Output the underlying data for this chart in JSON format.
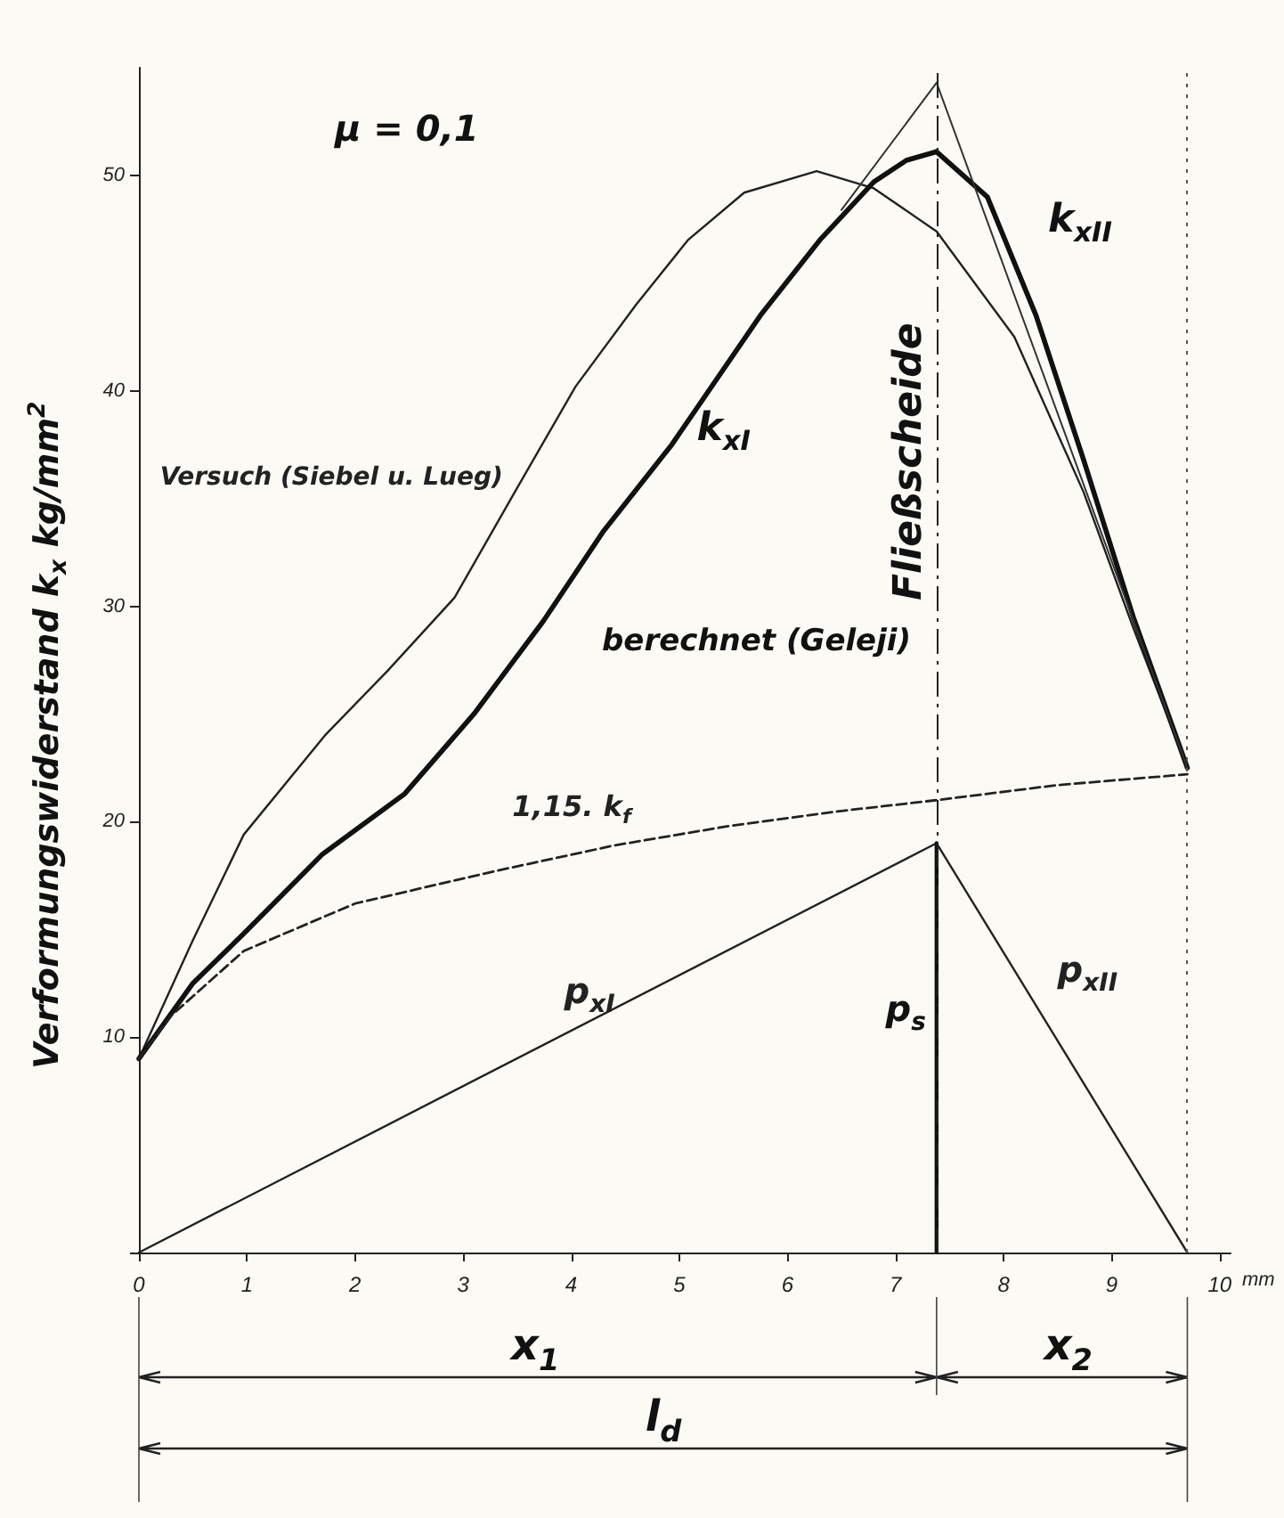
{
  "chart_data": {
    "type": "line",
    "xlabel": "mm",
    "ylabel": "Verformungswiderstand  k$_{x}$  kg/mm$^{2}$",
    "xlim": [
      0,
      10.1
    ],
    "xticks": [
      0,
      1,
      2,
      3,
      4,
      5,
      6,
      7,
      8,
      9,
      10
    ],
    "ylim": [
      0,
      55
    ],
    "yticks": [
      {
        "value": 0,
        "label": null
      },
      10,
      20,
      30,
      40,
      50
    ],
    "grid": false,
    "legend": false,
    "marker": "none",
    "annotations": [
      "μ = 0,1",
      "berechnet (Geleji)",
      "x$_{1}$",
      "x$_{2}$",
      "l$_{d}$"
    ],
    "ref_lines": [
      {
        "axis": "x",
        "value": 7.38,
        "label": "Fließscheide",
        "line_style": "dashed",
        "color": "#222222"
      },
      {
        "axis": "x",
        "value": 9.7,
        "label": null,
        "line_style": "dotted",
        "color": "#555555"
      }
    ],
    "series": [
      {
        "name": "Versuch (Siebel u. Lueg)",
        "color": "#222222",
        "line_style": "solid",
        "x": [
          0,
          0.5,
          0.97,
          1.72,
          2.3,
          2.92,
          3.5,
          4.04,
          4.6,
          5.08,
          5.6,
          6.27,
          6.8,
          7.38,
          8.1,
          8.74,
          9.2,
          9.7
        ],
        "values": [
          9,
          14.5,
          19.4,
          24,
          27,
          30.4,
          35.5,
          40.2,
          44,
          47,
          49.2,
          50.2,
          49.4,
          47.4,
          42.5,
          35.3,
          29,
          22.5
        ]
      },
      {
        "name": "k$_{xI}$",
        "color": "#111111",
        "line_style": "solid",
        "x": [
          0,
          0.5,
          0.97,
          1.7,
          2.46,
          3.1,
          3.74,
          4.3,
          4.93,
          5.75,
          6.3,
          6.8,
          7.1,
          7.38
        ],
        "values": [
          9,
          12.5,
          14.8,
          18.5,
          21.3,
          25,
          29.3,
          33.5,
          37.5,
          43.5,
          47,
          49.7,
          50.7,
          51.1
        ]
      },
      {
        "name": "k$_{xII}$",
        "color": "#111111",
        "line_style": "solid",
        "x": [
          7.38,
          7.85,
          8.3,
          8.74,
          9.2,
          9.7
        ],
        "values": [
          51.1,
          49,
          43.5,
          36.8,
          29.5,
          22.5
        ]
      },
      {
        "name": "1,15. k$_{f}$",
        "color": "#222222",
        "line_style": "dashed",
        "x": [
          0,
          0.3,
          0.97,
          2,
          3.29,
          4.4,
          5.46,
          6.5,
          7.38,
          8.5,
          9.7
        ],
        "values": [
          9,
          11,
          14,
          16.2,
          17.7,
          18.9,
          19.8,
          20.5,
          21,
          21.7,
          22.2
        ]
      },
      {
        "name": "p$_{xI}$",
        "color": "#222222",
        "line_style": "solid",
        "x": [
          0,
          7.38
        ],
        "values": [
          0,
          19
        ]
      },
      {
        "name": "p$_{xII}$",
        "color": "#222222",
        "line_style": "solid",
        "x": [
          7.38,
          9.7
        ],
        "values": [
          19,
          0
        ]
      },
      {
        "name": "p$_{s}$",
        "color": "#111111",
        "line_style": "solid",
        "x": [
          7.38,
          7.38
        ],
        "values": [
          0,
          19
        ]
      },
      {
        "color": "#333333",
        "line_style": "solid",
        "x": [
          6.5,
          7.38,
          9.7
        ],
        "values": [
          48.4,
          54.3,
          22.5
        ]
      }
    ]
  }
}
